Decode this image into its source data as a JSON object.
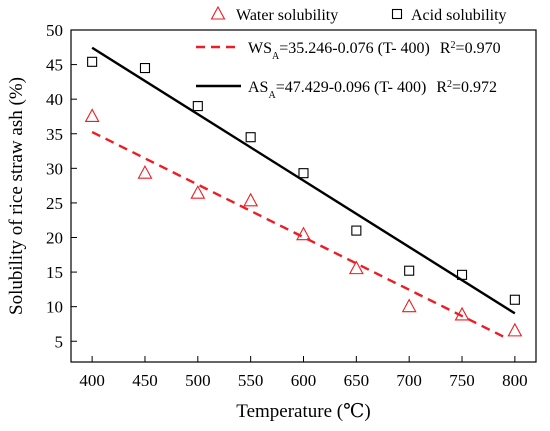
{
  "chart_data": {
    "type": "scatter",
    "xlabel": "Temperature (℃)",
    "ylabel": "Solubility of rice straw ash (%)",
    "xlim": [
      380,
      820
    ],
    "ylim": [
      2,
      50
    ],
    "xticks": [
      400,
      450,
      500,
      550,
      600,
      650,
      700,
      750,
      800
    ],
    "yticks": [
      5,
      10,
      15,
      20,
      25,
      30,
      35,
      40,
      45,
      50
    ],
    "grid": false,
    "legend_position": "top-right",
    "series": [
      {
        "name": "Water solubility",
        "marker": "triangle",
        "color": "#ee1c24",
        "x": [
          400,
          450,
          500,
          550,
          600,
          650,
          700,
          750,
          800
        ],
        "values": [
          37.5,
          29.3,
          26.4,
          25.3,
          20.4,
          15.5,
          10.0,
          8.8,
          6.5
        ]
      },
      {
        "name": "Acid solubility",
        "marker": "square",
        "color": "#000000",
        "x": [
          400,
          450,
          500,
          550,
          600,
          650,
          700,
          750,
          800
        ],
        "values": [
          45.4,
          44.5,
          39.0,
          34.5,
          29.3,
          21.0,
          15.2,
          14.6,
          11.0
        ]
      }
    ],
    "fits": [
      {
        "name": "Water solubility fit",
        "style": "dashed",
        "color": "#ee1c24",
        "intercept": 35.246,
        "slope": -0.076,
        "x_offset": 400,
        "x_range": [
          400,
          790
        ],
        "equation_main": "WS",
        "equation_sub": "A",
        "equation_rest": "=35.246-0.076 (T- 400)",
        "r2_label": "R",
        "r2_sup": "2",
        "r2_value": "=0.970"
      },
      {
        "name": "Acid solubility fit",
        "style": "solid",
        "color": "#000000",
        "intercept": 47.429,
        "slope": -0.096,
        "x_offset": 400,
        "x_range": [
          400,
          800
        ],
        "equation_main": "AS",
        "equation_sub": "A",
        "equation_rest": "=47.429-0.096 (T- 400)",
        "r2_label": "R",
        "r2_sup": "2",
        "r2_value": "=0.972"
      }
    ]
  }
}
